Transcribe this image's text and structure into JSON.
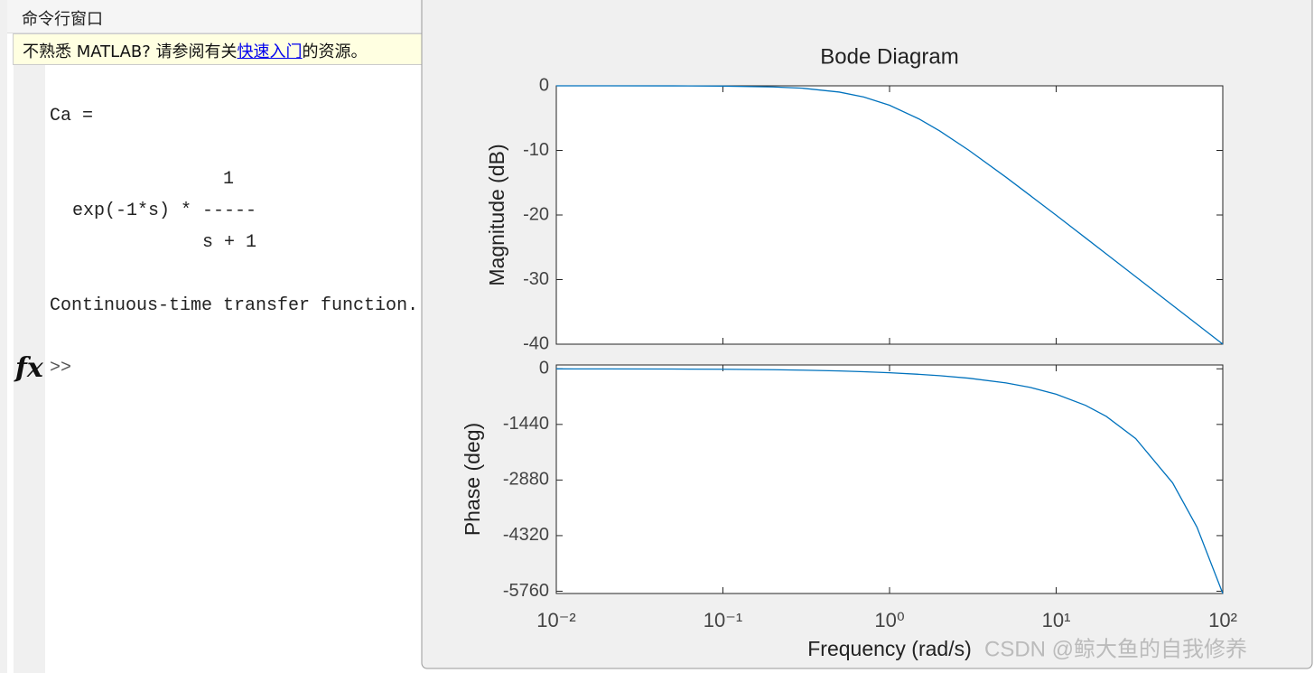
{
  "command_window": {
    "title": "命令行窗口",
    "notice": {
      "text_before": "不熟悉 MATLAB? 请参阅有关",
      "link": "快速入门",
      "text_after": "的资源。"
    },
    "output": [
      "Ca =",
      "1",
      "exp(-1*s) * -----",
      "s + 1",
      "Continuous-time transfer function."
    ],
    "prompt": ">>"
  },
  "watermark": "CSDN @鲸大鱼的自我修养",
  "chart_data": [
    {
      "type": "line",
      "title": "Bode Diagram",
      "ylabel": "Magnitude (dB)",
      "log_x": true,
      "color": "#0072bd",
      "x": [
        0.01,
        0.02,
        0.05,
        0.1,
        0.2,
        0.3,
        0.5,
        0.7,
        1,
        1.5,
        2,
        3,
        5,
        7,
        10,
        15,
        20,
        30,
        50,
        70,
        100
      ],
      "values": [
        0,
        -0.002,
        -0.011,
        -0.043,
        -0.17,
        -0.37,
        -0.97,
        -1.73,
        -3.01,
        -5.12,
        -6.99,
        -10,
        -14.15,
        -17.0,
        -20.04,
        -23.54,
        -26.03,
        -29.55,
        -33.98,
        -36.9,
        -40.0
      ],
      "xlim": [
        0.01,
        100
      ],
      "xticks": [
        0.01,
        0.1,
        1,
        10,
        100
      ],
      "ylim": [
        -40,
        0
      ],
      "yticks": [
        0,
        -10,
        -20,
        -30,
        -40
      ]
    },
    {
      "type": "line",
      "ylabel": "Phase (deg)",
      "xlabel": "Frequency  (rad/s)",
      "log_x": true,
      "color": "#0072bd",
      "x": [
        0.01,
        0.02,
        0.05,
        0.1,
        0.2,
        0.3,
        0.5,
        0.7,
        1,
        1.5,
        2,
        3,
        5,
        7,
        10,
        15,
        20,
        30,
        50,
        70,
        100
      ],
      "values": [
        -1.15,
        -2.29,
        -5.73,
        -11.4,
        -22.8,
        -33.9,
        -55.2,
        -75.1,
        -102.3,
        -142.2,
        -178,
        -243.5,
        -365.2,
        -483,
        -657.3,
        -945.6,
        -1233,
        -1807,
        -2953.7,
        -4099.9,
        -5819
      ],
      "xlim": [
        0.01,
        100
      ],
      "xticks": [
        {
          "value": 0.01,
          "label": "10⁻²"
        },
        {
          "value": 0.1,
          "label": "10⁻¹"
        },
        {
          "value": 1,
          "label": "10⁰"
        },
        {
          "value": 10,
          "label": "10¹"
        },
        {
          "value": 100,
          "label": "10²"
        }
      ],
      "ylim": [
        -5819,
        100
      ],
      "yticks": [
        0,
        -1440,
        -2880,
        -4320,
        -5760
      ]
    }
  ]
}
